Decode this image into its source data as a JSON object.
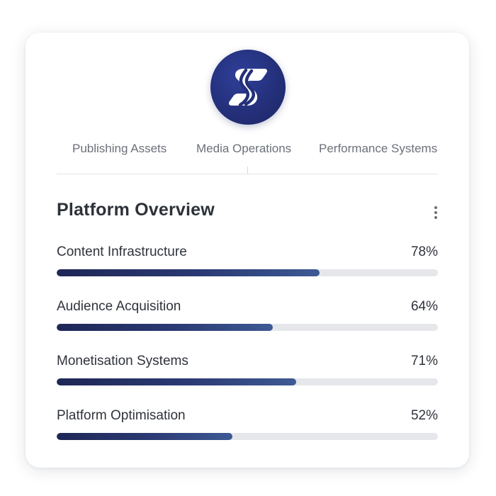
{
  "logo": {
    "icon": "stylized-s-logo-icon",
    "color": "#24307a"
  },
  "tabs": [
    {
      "label": "Publishing Assets"
    },
    {
      "label": "Media Operations"
    },
    {
      "label": "Performance Systems"
    }
  ],
  "overview": {
    "title": "Platform Overview",
    "menu_icon": "kebab-menu-icon",
    "metrics": [
      {
        "label": "Content Infrastructure",
        "value_text": "78%",
        "fill_fraction": 0.78
      },
      {
        "label": "Audience Acquisition",
        "value_text": "64%",
        "fill_fraction": 0.64
      },
      {
        "label": "Monetisation Systems",
        "value_text": "71%",
        "fill_fraction": 0.71
      },
      {
        "label": "Platform Optimisation",
        "value_text": "52%",
        "fill_fraction": 0.52
      }
    ]
  },
  "colors": {
    "bar_start": "#1e2756",
    "bar_end": "#3e5a94",
    "track": "#e6e7ea",
    "text": "#2f333b",
    "muted_text": "#6b7079"
  }
}
